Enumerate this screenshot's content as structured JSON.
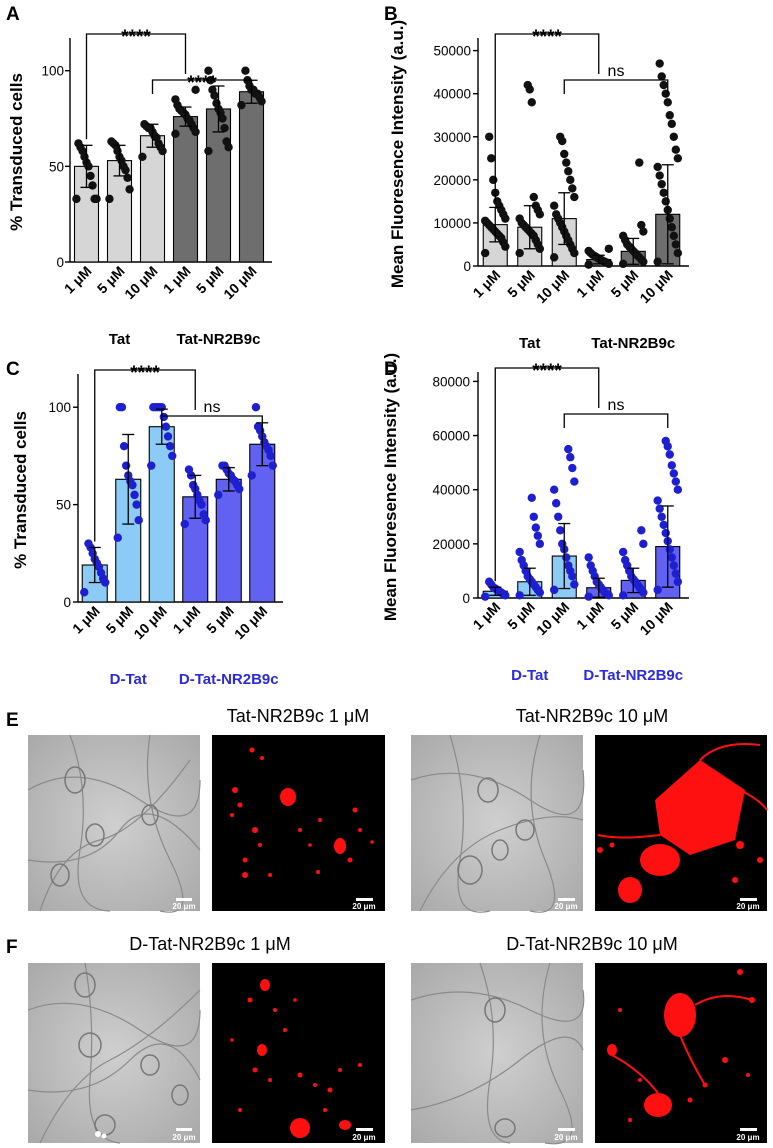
{
  "chart_data": [
    {
      "id": "A",
      "panel": "A",
      "type": "bar",
      "ylabel": "% Transduced cells",
      "ylim": [
        0,
        115
      ],
      "yticks": [
        0,
        50,
        100
      ],
      "categories": [
        "1 μM",
        "5 μM",
        "10 μM",
        "1 μM",
        "5 μM",
        "10 μM"
      ],
      "groups": [
        {
          "label": "Tat",
          "span": [
            0,
            2
          ]
        },
        {
          "label": "Tat-NR2B9c",
          "span": [
            3,
            5
          ]
        }
      ],
      "values": [
        50,
        53,
        66,
        76,
        80,
        89
      ],
      "errors": [
        11,
        8,
        6,
        5,
        12,
        6
      ],
      "bar_colors": [
        "#d6d6d6",
        "#d6d6d6",
        "#d6d6d6",
        "#6e6e6e",
        "#6e6e6e",
        "#6e6e6e"
      ],
      "point_color": "#111111",
      "points": [
        [
          33,
          33,
          33,
          40,
          45,
          50,
          52,
          55,
          58,
          60,
          62
        ],
        [
          33,
          38,
          44,
          48,
          50,
          53,
          55,
          58,
          61,
          62,
          63
        ],
        [
          55,
          58,
          60,
          62,
          65,
          66,
          68,
          70,
          70,
          71,
          72
        ],
        [
          67,
          68,
          70,
          72,
          74,
          75,
          77,
          78,
          79,
          80,
          82,
          85,
          90
        ],
        [
          58,
          60,
          63,
          70,
          75,
          78,
          80,
          83,
          87,
          90,
          95,
          100
        ],
        [
          82,
          84,
          86,
          88,
          88,
          90,
          90,
          92,
          95,
          100
        ]
      ],
      "comparisons": [
        {
          "from": 0,
          "to": 3,
          "label": "****"
        },
        {
          "from": 2,
          "to": 5,
          "label": "****"
        }
      ]
    },
    {
      "id": "B",
      "panel": "B",
      "type": "bar",
      "ylabel": "Mean Fluoresence Intensity (a.u.)",
      "ylim": [
        0,
        52000
      ],
      "yticks": [
        0,
        10000,
        20000,
        30000,
        40000,
        50000
      ],
      "categories": [
        "1 μM",
        "5 μM",
        "10 μM",
        "1 μM",
        "5 μM",
        "10 μM"
      ],
      "groups": [
        {
          "label": "Tat",
          "span": [
            0,
            2
          ]
        },
        {
          "label": "Tat-NR2B9c",
          "span": [
            3,
            5
          ]
        }
      ],
      "values": [
        9600,
        9000,
        11000,
        1500,
        3400,
        12000
      ],
      "errors": [
        4000,
        5000,
        6000,
        1000,
        3000,
        11500
      ],
      "bar_colors": [
        "#d6d6d6",
        "#d6d6d6",
        "#d6d6d6",
        "#6e6e6e",
        "#6e6e6e",
        "#6e6e6e"
      ],
      "point_color": "#111111",
      "points": [
        [
          3000,
          4500,
          5500,
          6500,
          7000,
          7500,
          8000,
          8500,
          9000,
          9500,
          10000,
          10500,
          11000,
          12000,
          13000,
          14000,
          15000,
          17000,
          20000,
          25000,
          30000
        ],
        [
          3000,
          4000,
          5000,
          6000,
          7000,
          7500,
          8000,
          8500,
          9000,
          9500,
          10000,
          11000,
          12000,
          13000,
          14000,
          16000,
          38000,
          41000,
          42000
        ],
        [
          2000,
          3000,
          4000,
          5000,
          6000,
          7000,
          8000,
          9000,
          10000,
          11000,
          12000,
          14000,
          16000,
          18000,
          20000,
          22000,
          24000,
          26000,
          29000,
          30000
        ],
        [
          300,
          500,
          800,
          1000,
          1200,
          1500,
          1700,
          2000,
          2300,
          2600,
          3000,
          3500,
          4000
        ],
        [
          500,
          1000,
          1500,
          2000,
          2500,
          3000,
          3500,
          4000,
          4500,
          5000,
          6000,
          7000,
          8000,
          9500,
          24000
        ],
        [
          1000,
          3000,
          5000,
          7000,
          9000,
          11000,
          13000,
          15000,
          17000,
          19000,
          21000,
          23000,
          25000,
          27000,
          30000,
          33000,
          35000,
          38000,
          40000,
          42000,
          44000,
          47000
        ]
      ],
      "comparisons": [
        {
          "from": 0,
          "to": 3,
          "label": "****"
        },
        {
          "from": 2,
          "to": 5,
          "label": "ns"
        }
      ]
    },
    {
      "id": "C",
      "panel": "C",
      "type": "bar",
      "ylabel": "% Transduced cells",
      "ylim": [
        0,
        115
      ],
      "yticks": [
        0,
        50,
        100
      ],
      "categories": [
        "1 μM",
        "5 μM",
        "10 μM",
        "1 μM",
        "5 μM",
        "10 μM"
      ],
      "groups": [
        {
          "label": "D-Tat",
          "span": [
            0,
            2
          ]
        },
        {
          "label": "D-Tat-NR2B9c",
          "span": [
            3,
            5
          ]
        }
      ],
      "values": [
        19,
        63,
        90,
        54,
        63,
        81
      ],
      "errors": [
        9,
        23,
        9,
        11,
        6,
        11
      ],
      "bar_colors": [
        "#8ccbf5",
        "#8ccbf5",
        "#8ccbf5",
        "#6161f2",
        "#6161f2",
        "#6161f2"
      ],
      "point_color": "#1f1fd2",
      "points": [
        [
          5,
          10,
          12,
          15,
          18,
          20,
          22,
          25,
          28,
          30
        ],
        [
          33,
          42,
          50,
          55,
          60,
          62,
          65,
          70,
          80,
          100,
          100
        ],
        [
          70,
          75,
          80,
          85,
          90,
          95,
          100,
          100,
          100,
          100,
          100
        ],
        [
          40,
          42,
          45,
          50,
          52,
          55,
          58,
          60,
          65,
          68
        ],
        [
          55,
          58,
          60,
          62,
          63,
          65,
          66,
          68,
          70,
          70
        ],
        [
          65,
          70,
          75,
          78,
          80,
          82,
          85,
          88,
          90,
          100
        ]
      ],
      "comparisons": [
        {
          "from": 0,
          "to": 3,
          "label": "****"
        },
        {
          "from": 2,
          "to": 5,
          "label": "ns"
        }
      ]
    },
    {
      "id": "D",
      "panel": "D",
      "type": "bar",
      "ylabel": "Mean Fluoresence Intensity (a.u.)",
      "ylim": [
        0,
        82000
      ],
      "yticks": [
        0,
        20000,
        40000,
        60000,
        80000
      ],
      "categories": [
        "1 μM",
        "5 μM",
        "10 μM",
        "1 μM",
        "5 μM",
        "10 μM"
      ],
      "groups": [
        {
          "label": "D-Tat",
          "span": [
            0,
            2
          ]
        },
        {
          "label": "D-Tat-NR2B9c",
          "span": [
            3,
            5
          ]
        }
      ],
      "values": [
        2500,
        6000,
        15500,
        3800,
        6500,
        19000
      ],
      "errors": [
        1500,
        5000,
        12000,
        3500,
        4500,
        15000
      ],
      "bar_colors": [
        "#8ccbf5",
        "#8ccbf5",
        "#8ccbf5",
        "#6161f2",
        "#6161f2",
        "#6161f2"
      ],
      "point_color": "#1f1fd2",
      "points": [
        [
          500,
          1000,
          1500,
          2000,
          2500,
          3000,
          3500,
          4000,
          5000,
          6000
        ],
        [
          1000,
          2000,
          3000,
          4000,
          5000,
          6000,
          7000,
          8000,
          10000,
          12000,
          14000,
          17000,
          20000,
          23000,
          26000,
          30000,
          37000
        ],
        [
          3000,
          5000,
          8000,
          10000,
          12000,
          15000,
          18000,
          20000,
          25000,
          30000,
          35000,
          40000,
          43000,
          48000,
          52000,
          55000
        ],
        [
          500,
          1000,
          1500,
          2000,
          3000,
          4000,
          5000,
          6000,
          8000,
          10000,
          12000,
          15000
        ],
        [
          1000,
          2000,
          3000,
          4000,
          5000,
          6000,
          7000,
          8000,
          10000,
          12000,
          14000,
          17000,
          20000,
          25000
        ],
        [
          3000,
          6000,
          9000,
          12000,
          15000,
          18000,
          21000,
          24000,
          27000,
          30000,
          33000,
          36000,
          40000,
          43000,
          46000,
          49000,
          53000,
          56000,
          58000
        ]
      ],
      "comparisons": [
        {
          "from": 0,
          "to": 3,
          "label": "****"
        },
        {
          "from": 2,
          "to": 5,
          "label": "ns"
        }
      ]
    }
  ],
  "images": {
    "E": {
      "letter": "E",
      "left": {
        "title": "Tat-NR2B9c 1 μM",
        "scale_label": "20 μm"
      },
      "right": {
        "title": "Tat-NR2B9c 10 μM",
        "scale_label": "20 μm"
      }
    },
    "F": {
      "letter": "F",
      "left": {
        "title": "D-Tat-NR2B9c 1 μM",
        "scale_label": "20 μm"
      },
      "right": {
        "title": "D-Tat-NR2B9c 10 μM",
        "scale_label": "20 μm"
      }
    }
  },
  "colors": {
    "fluorescence": "#ff1010",
    "brightfield": "#bdbdbd"
  }
}
